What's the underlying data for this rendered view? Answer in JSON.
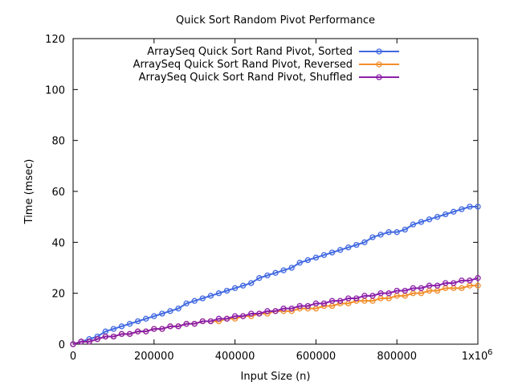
{
  "chart_data": {
    "type": "line",
    "title": "Quick Sort Random Pivot Performance",
    "xlabel": "Input Size (n)",
    "ylabel": "Time (msec)",
    "xlim": [
      0,
      1000000
    ],
    "ylim": [
      0,
      120
    ],
    "xticks": [
      0,
      200000,
      400000,
      600000,
      800000,
      1000000
    ],
    "xtick_labels": [
      "0",
      "200000",
      "400000",
      "600000",
      "800000",
      "1x10"
    ],
    "xtick_last_exponent": "6",
    "yticks": [
      0,
      20,
      40,
      60,
      80,
      100,
      120
    ],
    "ytick_labels": [
      "0",
      "20",
      "40",
      "60",
      "80",
      "100",
      "120"
    ],
    "grid": false,
    "legend_position": "top-right",
    "marker": "circle",
    "x": [
      0,
      20000,
      40000,
      60000,
      80000,
      100000,
      120000,
      140000,
      160000,
      180000,
      200000,
      220000,
      240000,
      260000,
      280000,
      300000,
      320000,
      340000,
      360000,
      380000,
      400000,
      420000,
      440000,
      460000,
      480000,
      500000,
      520000,
      540000,
      560000,
      580000,
      600000,
      620000,
      640000,
      660000,
      680000,
      700000,
      720000,
      740000,
      760000,
      780000,
      800000,
      820000,
      840000,
      860000,
      880000,
      900000,
      920000,
      940000,
      960000,
      980000,
      1000000
    ],
    "series": [
      {
        "name": "ArraySeq Quick Sort Rand Pivot, Sorted",
        "color": "#4169e1",
        "values": [
          0,
          1,
          2,
          3,
          5,
          6,
          7,
          8,
          9,
          10,
          11,
          12,
          13,
          14,
          16,
          17,
          18,
          19,
          20,
          21,
          22,
          23,
          24,
          26,
          27,
          28,
          29,
          30,
          32,
          33,
          34,
          35,
          36,
          37,
          38,
          39,
          40,
          42,
          43,
          44,
          44,
          45,
          47,
          48,
          49,
          50,
          51,
          52,
          53,
          54,
          54
        ]
      },
      {
        "name": "ArraySeq Quick Sort Rand Pivot, Reversed",
        "color": "#f28e2b",
        "values": [
          0,
          1,
          1,
          2,
          3,
          3,
          4,
          4,
          5,
          5,
          6,
          6,
          7,
          7,
          8,
          8,
          9,
          9,
          9,
          10,
          10,
          11,
          11,
          12,
          12,
          13,
          13,
          13,
          14,
          14,
          14,
          15,
          15,
          16,
          16,
          17,
          17,
          17,
          18,
          18,
          19,
          19,
          20,
          20,
          21,
          21,
          22,
          22,
          22,
          23,
          23
        ]
      },
      {
        "name": "ArraySeq Quick Sort Rand Pivot, Shuffled",
        "color": "#8b1fa9",
        "values": [
          0,
          1,
          1,
          2,
          3,
          3,
          4,
          4,
          5,
          5,
          6,
          6,
          7,
          7,
          8,
          8,
          9,
          9,
          10,
          10,
          11,
          11,
          12,
          12,
          13,
          13,
          14,
          14,
          15,
          15,
          16,
          16,
          17,
          17,
          18,
          18,
          19,
          19,
          20,
          20,
          21,
          21,
          22,
          22,
          23,
          23,
          24,
          24,
          25,
          25,
          26
        ]
      }
    ]
  }
}
